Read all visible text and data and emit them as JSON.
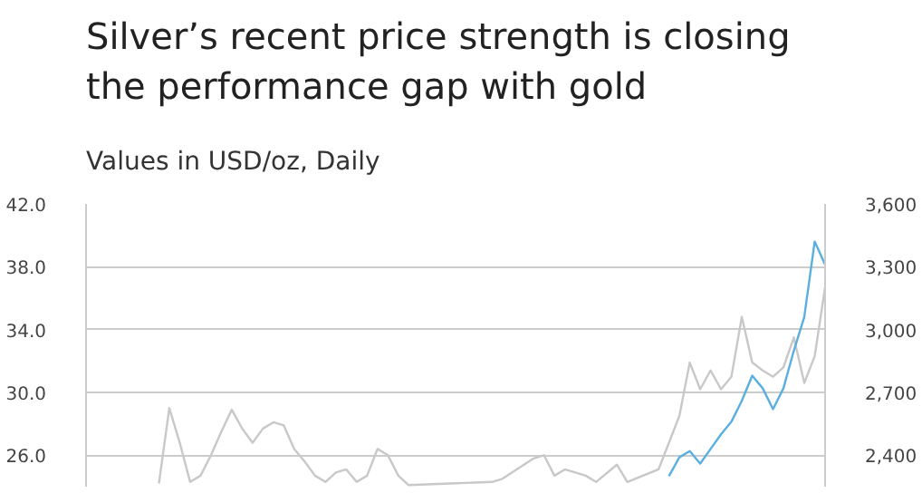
{
  "chart_data": {
    "type": "line",
    "title": "Silver’s recent price strength is closing the performance gap with gold",
    "subtitle": "Values in USD/oz, Daily",
    "categories": [
      null,
      null,
      null,
      null,
      null,
      null,
      null,
      null,
      null,
      null,
      null,
      null,
      null,
      null,
      null,
      null,
      null,
      null,
      null,
      null,
      null,
      null,
      null,
      null,
      null,
      null,
      null,
      null,
      null,
      null,
      null,
      null,
      null,
      null,
      null,
      null,
      null,
      null,
      null,
      null,
      null,
      null,
      null,
      null,
      null,
      null,
      null,
      null,
      null,
      null,
      null,
      null,
      null,
      null,
      null,
      null,
      null,
      null,
      null,
      null,
      null,
      null,
      null,
      null,
      null,
      null,
      null,
      null,
      null,
      null,
      null,
      null
    ],
    "ylim": [
      24,
      42
    ],
    "yticks": [
      {
        "value": 26,
        "label": "26.0"
      },
      {
        "value": 30,
        "label": "30.0"
      },
      {
        "value": 34,
        "label": "34.0"
      },
      {
        "value": 38,
        "label": "38.0"
      },
      {
        "value": 42,
        "label": "42.0"
      }
    ],
    "y2lim": [
      2250,
      3600
    ],
    "y2ticks": [
      {
        "value": 2400,
        "label": "2,400"
      },
      {
        "value": 2700,
        "label": "2,700"
      },
      {
        "value": 3000,
        "label": "3,000"
      },
      {
        "value": 3300,
        "label": "3,300"
      },
      {
        "value": 3600,
        "label": "3,600"
      }
    ],
    "grid": "y",
    "series": [
      {
        "color": "#c8c8c8",
        "values": [
          null,
          null,
          null,
          null,
          null,
          null,
          null,
          24.2,
          29.0,
          26.8,
          24.3,
          24.7,
          26.0,
          27.5,
          28.9,
          27.7,
          26.8,
          27.7,
          28.1,
          27.9,
          26.4,
          25.6,
          24.7,
          24.3,
          24.9,
          25.1,
          24.3,
          24.7,
          26.4,
          26.0,
          24.7,
          24.1,
          null,
          null,
          null,
          null,
          null,
          null,
          null,
          24.3,
          24.5,
          null,
          null,
          25.8,
          26.0,
          24.7,
          25.1,
          null,
          24.7,
          24.3,
          null,
          25.4,
          24.3,
          null,
          null,
          25.1,
          26.8,
          28.5,
          31.9,
          30.2,
          31.4,
          30.2,
          31.0,
          34.8,
          31.9,
          31.4,
          31.0,
          31.6,
          33.5,
          30.6,
          32.3,
          36.7
        ]
      },
      {
        "color": "#5aafe0",
        "axis": "y2",
        "values": [
          null,
          null,
          null,
          null,
          null,
          null,
          null,
          null,
          null,
          null,
          null,
          null,
          null,
          null,
          null,
          null,
          null,
          null,
          null,
          null,
          null,
          null,
          null,
          null,
          null,
          null,
          null,
          null,
          null,
          null,
          null,
          null,
          null,
          null,
          null,
          null,
          null,
          null,
          null,
          null,
          null,
          null,
          null,
          null,
          null,
          null,
          null,
          null,
          null,
          null,
          null,
          null,
          null,
          null,
          null,
          null,
          2300,
          2390,
          2420,
          2360,
          2430,
          2500,
          2560,
          2660,
          2780,
          2720,
          2620,
          2720,
          2900,
          3060,
          3420,
          3310
        ]
      }
    ]
  }
}
